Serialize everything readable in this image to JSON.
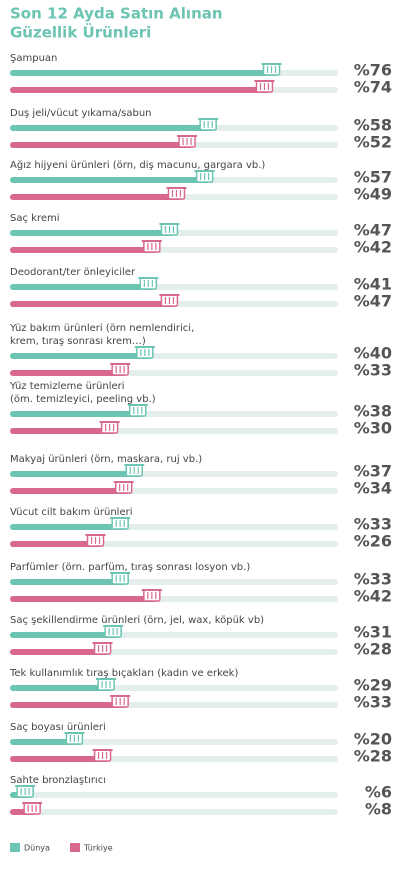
{
  "chart_data": {
    "type": "hbar",
    "title": [
      "Son 12 Ayda Satın Alınan",
      "Güzellik Ürünleri"
    ],
    "categories": [
      "Şampuan",
      "Duş jeli/vücut yıkama/sabun",
      "Ağız hijyeni ürünleri (örn, diş macunu, gargara vb.)",
      "Saç kremi",
      "Deodorant/ter önleyiciler",
      "Yüz bakım ürünleri (örn nemlendirici,\nkrem, tıraş sonrası krem…)",
      "Yüz temizleme ürünleri\n(öm. temizleyici, peeling vb.)",
      "Makyaj ürünleri (örn, maskara, ruj vb.)",
      "Vücut cilt bakım ürünleri",
      "Parfümler (örn. parfüm, tıraş sonrası losyon vb.)",
      "Saç şekillendirme ürünleri (örn, jel, wax, köpük vb)",
      "Tek kullanımlık tıraş bıçakları (kadın ve erkek)",
      "Saç boyası ürünleri",
      "Sahte bronzlaştırıcı"
    ],
    "series": [
      {
        "name": "Dünya",
        "color": "#6cc4b2",
        "values": [
          76,
          58,
          57,
          47,
          41,
          40,
          38,
          37,
          33,
          33,
          31,
          29,
          20,
          6
        ],
        "value_labels": [
          "%76",
          "%58",
          "%57",
          "%47",
          "%41",
          "%40",
          "%38",
          "%37",
          "%33",
          "%33",
          "%31",
          "%29",
          "%20",
          "%6"
        ]
      },
      {
        "name": "Türkiye",
        "color": "#d9688f",
        "values": [
          74,
          52,
          49,
          42,
          47,
          33,
          30,
          34,
          26,
          42,
          28,
          33,
          28,
          8
        ],
        "value_labels": [
          "%74",
          "%52",
          "%49",
          "%42",
          "%47",
          "%33",
          "%30",
          "%34",
          "%26",
          "%42",
          "%28",
          "%33",
          "%28",
          "%8"
        ]
      }
    ],
    "xlim": [
      0,
      100
    ]
  }
}
